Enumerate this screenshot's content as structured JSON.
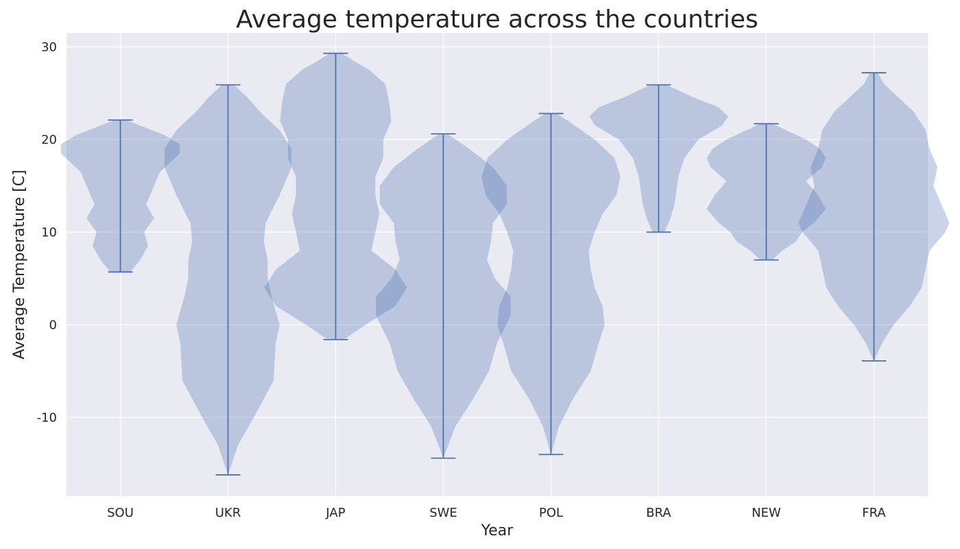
{
  "chart_data": {
    "type": "violin",
    "title": "Average temperature across the countries",
    "xlabel": "Year",
    "ylabel": "Average Temperature [C]",
    "ylim": [
      -18.5,
      31.5
    ],
    "yticks": [
      -10,
      0,
      10,
      20,
      30
    ],
    "grid": true,
    "legend": "none",
    "colors": {
      "plot_background": "#eaeaf2",
      "grid": "#ffffff",
      "violin_fill": "#4c72b0",
      "violin_line": "#4c72b0"
    },
    "categories": [
      "SOU",
      "UKR",
      "JAP",
      "SWE",
      "POL",
      "BRA",
      "NEW",
      "FRA"
    ],
    "violins": [
      {
        "name": "SOU",
        "min": 5.7,
        "max": 22.1,
        "density": [
          [
            5.7,
            0.05
          ],
          [
            7,
            0.1
          ],
          [
            8.5,
            0.14
          ],
          [
            10,
            0.12
          ],
          [
            11.5,
            0.17
          ],
          [
            13,
            0.13
          ],
          [
            14.5,
            0.16
          ],
          [
            16.5,
            0.2
          ],
          [
            18.5,
            0.3
          ],
          [
            19.5,
            0.3
          ],
          [
            20.5,
            0.22
          ],
          [
            21.5,
            0.1
          ],
          [
            22.1,
            0.03
          ]
        ]
      },
      {
        "name": "UKR",
        "min": -16.2,
        "max": 25.9,
        "density": [
          [
            -16.2,
            0.0
          ],
          [
            -13,
            0.05
          ],
          [
            -10,
            0.13
          ],
          [
            -6,
            0.23
          ],
          [
            -2,
            0.24
          ],
          [
            0,
            0.26
          ],
          [
            3,
            0.22
          ],
          [
            5,
            0.2
          ],
          [
            7,
            0.2
          ],
          [
            9,
            0.18
          ],
          [
            11,
            0.19
          ],
          [
            14,
            0.26
          ],
          [
            17,
            0.32
          ],
          [
            19,
            0.32
          ],
          [
            21,
            0.26
          ],
          [
            23,
            0.16
          ],
          [
            24.5,
            0.1
          ],
          [
            25.9,
            0.03
          ]
        ]
      },
      {
        "name": "JAP",
        "min": -1.6,
        "max": 29.3,
        "density": [
          [
            -1.6,
            0.04
          ],
          [
            0,
            0.15
          ],
          [
            2,
            0.3
          ],
          [
            4,
            0.36
          ],
          [
            6,
            0.3
          ],
          [
            8,
            0.18
          ],
          [
            10,
            0.2
          ],
          [
            12,
            0.22
          ],
          [
            14,
            0.2
          ],
          [
            16,
            0.2
          ],
          [
            18,
            0.24
          ],
          [
            20,
            0.24
          ],
          [
            22,
            0.28
          ],
          [
            24,
            0.27
          ],
          [
            26,
            0.25
          ],
          [
            27.5,
            0.17
          ],
          [
            28.5,
            0.09
          ],
          [
            29.3,
            0.03
          ]
        ]
      },
      {
        "name": "SWE",
        "min": -14.4,
        "max": 20.6,
        "density": [
          [
            -14.4,
            0.0
          ],
          [
            -11,
            0.06
          ],
          [
            -8,
            0.15
          ],
          [
            -5,
            0.23
          ],
          [
            -2,
            0.27
          ],
          [
            1,
            0.34
          ],
          [
            3,
            0.34
          ],
          [
            5,
            0.26
          ],
          [
            7,
            0.22
          ],
          [
            9,
            0.24
          ],
          [
            11,
            0.25
          ],
          [
            13,
            0.32
          ],
          [
            15,
            0.32
          ],
          [
            17,
            0.25
          ],
          [
            19,
            0.13
          ],
          [
            20.6,
            0.02
          ]
        ]
      },
      {
        "name": "POL",
        "min": -14.0,
        "max": 22.8,
        "density": [
          [
            -14,
            0.0
          ],
          [
            -11,
            0.04
          ],
          [
            -8,
            0.11
          ],
          [
            -5,
            0.2
          ],
          [
            -2,
            0.24
          ],
          [
            0,
            0.27
          ],
          [
            2,
            0.26
          ],
          [
            4,
            0.22
          ],
          [
            6,
            0.2
          ],
          [
            8,
            0.19
          ],
          [
            10,
            0.22
          ],
          [
            12,
            0.26
          ],
          [
            14,
            0.33
          ],
          [
            16,
            0.35
          ],
          [
            18,
            0.32
          ],
          [
            20,
            0.22
          ],
          [
            21.5,
            0.12
          ],
          [
            22.8,
            0.03
          ]
        ]
      },
      {
        "name": "BRA",
        "min": 10.0,
        "max": 25.9,
        "density": [
          [
            10,
            0.03
          ],
          [
            11.5,
            0.06
          ],
          [
            13,
            0.08
          ],
          [
            14.5,
            0.09
          ],
          [
            16,
            0.1
          ],
          [
            18,
            0.13
          ],
          [
            20,
            0.2
          ],
          [
            21.5,
            0.32
          ],
          [
            22.5,
            0.35
          ],
          [
            23.5,
            0.3
          ],
          [
            24.5,
            0.18
          ],
          [
            25.9,
            0.04
          ]
        ]
      },
      {
        "name": "NEW",
        "min": 7.0,
        "max": 21.7,
        "density": [
          [
            7,
            0.03
          ],
          [
            8,
            0.08
          ],
          [
            9,
            0.15
          ],
          [
            10,
            0.18
          ],
          [
            11,
            0.24
          ],
          [
            12.5,
            0.3
          ],
          [
            14,
            0.26
          ],
          [
            15.5,
            0.2
          ],
          [
            17,
            0.28
          ],
          [
            18,
            0.3
          ],
          [
            19,
            0.27
          ],
          [
            20,
            0.2
          ],
          [
            21,
            0.1
          ],
          [
            21.7,
            0.03
          ]
        ]
      },
      {
        "name": "FRA",
        "min": -3.9,
        "max": 27.2,
        "density": [
          [
            -3.9,
            0.0
          ],
          [
            -2,
            0.04
          ],
          [
            0,
            0.1
          ],
          [
            2,
            0.18
          ],
          [
            4,
            0.24
          ],
          [
            6,
            0.26
          ],
          [
            8,
            0.28
          ],
          [
            10,
            0.36
          ],
          [
            11,
            0.38
          ],
          [
            13,
            0.34
          ],
          [
            15,
            0.3
          ],
          [
            17,
            0.32
          ],
          [
            19,
            0.28
          ],
          [
            21,
            0.26
          ],
          [
            23,
            0.2
          ],
          [
            25,
            0.1
          ],
          [
            26,
            0.05
          ],
          [
            27.2,
            0.02
          ]
        ]
      }
    ]
  }
}
